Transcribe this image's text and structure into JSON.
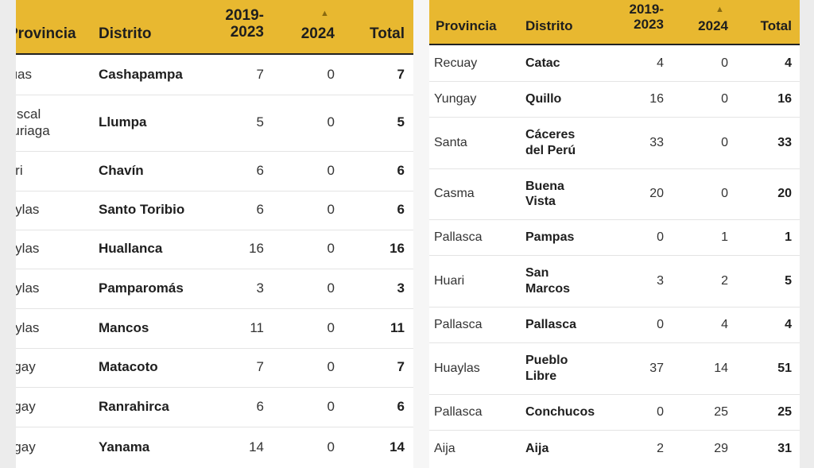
{
  "header": {
    "provincia": "Provincia",
    "distrito": "Distrito",
    "col_a": "2019-\n2023",
    "col_b": "2024",
    "total": "Total",
    "sort_indicator": "▲"
  },
  "left_rows": [
    {
      "provincia": "Sihuas",
      "distrito": "Cashapampa",
      "a": "7",
      "b": "0",
      "total": "7"
    },
    {
      "provincia": "Mariscal\nLuzuriaga",
      "distrito": "Llumpa",
      "a": "5",
      "b": "0",
      "total": "5"
    },
    {
      "provincia": "Huari",
      "distrito": "Chavín",
      "a": "6",
      "b": "0",
      "total": "6"
    },
    {
      "provincia": "Huaylas",
      "distrito": "Santo Toribio",
      "a": "6",
      "b": "0",
      "total": "6"
    },
    {
      "provincia": "Huaylas",
      "distrito": "Huallanca",
      "a": "16",
      "b": "0",
      "total": "16"
    },
    {
      "provincia": "Huaylas",
      "distrito": "Pamparomás",
      "a": "3",
      "b": "0",
      "total": "3"
    },
    {
      "provincia": "Huaylas",
      "distrito": "Mancos",
      "a": "11",
      "b": "0",
      "total": "11"
    },
    {
      "provincia": "Yungay",
      "distrito": "Matacoto",
      "a": "7",
      "b": "0",
      "total": "7"
    },
    {
      "provincia": "Yungay",
      "distrito": "Ranrahirca",
      "a": "6",
      "b": "0",
      "total": "6"
    },
    {
      "provincia": "Yungay",
      "distrito": "Yanama",
      "a": "14",
      "b": "0",
      "total": "14"
    }
  ],
  "right_rows": [
    {
      "provincia": "Recuay",
      "distrito": "Catac",
      "a": "4",
      "b": "0",
      "total": "4"
    },
    {
      "provincia": "Yungay",
      "distrito": "Quillo",
      "a": "16",
      "b": "0",
      "total": "16"
    },
    {
      "provincia": "Santa",
      "distrito": "Cáceres\ndel Perú",
      "a": "33",
      "b": "0",
      "total": "33"
    },
    {
      "provincia": "Casma",
      "distrito": "Buena\nVista",
      "a": "20",
      "b": "0",
      "total": "20"
    },
    {
      "provincia": "Pallasca",
      "distrito": "Pampas",
      "a": "0",
      "b": "1",
      "total": "1"
    },
    {
      "provincia": "Huari",
      "distrito": "San\nMarcos",
      "a": "3",
      "b": "2",
      "total": "5"
    },
    {
      "provincia": "Pallasca",
      "distrito": "Pallasca",
      "a": "0",
      "b": "4",
      "total": "4"
    },
    {
      "provincia": "Huaylas",
      "distrito": "Pueblo\nLibre",
      "a": "37",
      "b": "14",
      "total": "51"
    },
    {
      "provincia": "Pallasca",
      "distrito": "Conchucos",
      "a": "0",
      "b": "25",
      "total": "25"
    },
    {
      "provincia": "Aija",
      "distrito": "Aija",
      "a": "2",
      "b": "29",
      "total": "31"
    }
  ],
  "colors": {
    "header_bg": "#e8b830",
    "header_rule": "#222222"
  }
}
